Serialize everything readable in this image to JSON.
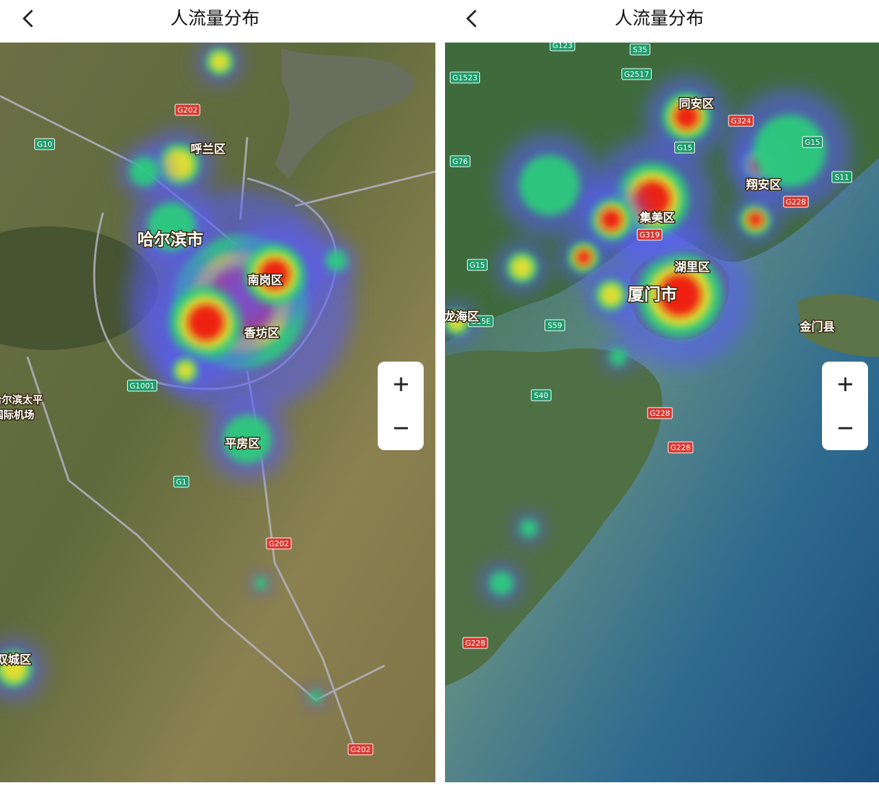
{
  "panels": [
    {
      "title": "人流量分布",
      "places": [
        "呼兰区",
        "哈尔滨市",
        "南岗区",
        "香坊区",
        "平房区",
        "双城区",
        "哈尔滨太平",
        "国际机场"
      ],
      "roads": [
        "G202",
        "G10",
        "G1001",
        "G1",
        "G202",
        "G202"
      ]
    },
    {
      "title": "人流量分布",
      "places": [
        "同安区",
        "翔安区",
        "集美区",
        "湖里区",
        "厦门市",
        "龙海区",
        "金门县"
      ],
      "roads": [
        "G123",
        "S35",
        "G1523",
        "G2517",
        "G324",
        "G15",
        "G15",
        "G76",
        "S11",
        "G228",
        "G319",
        "G15",
        "G15E",
        "S59",
        "S40",
        "G228",
        "G228",
        "G228"
      ]
    }
  ]
}
